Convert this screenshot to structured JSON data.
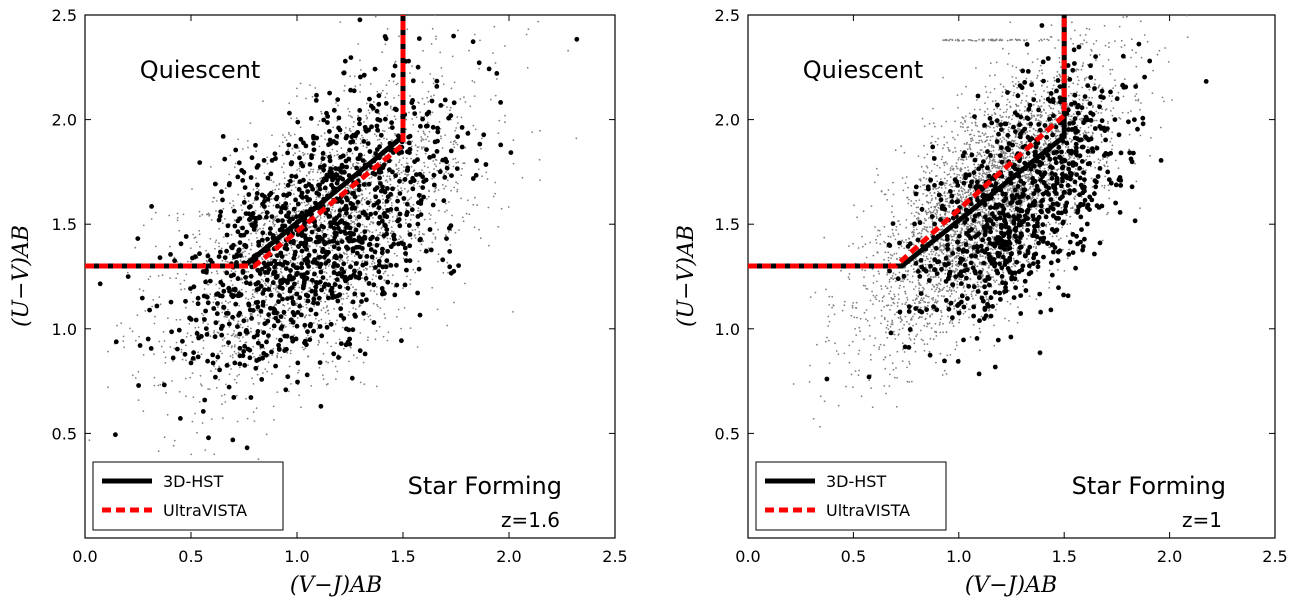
{
  "chart_data": [
    {
      "type": "scatter",
      "xlabel": "(V−J)AB",
      "ylabel": "(U−V)AB",
      "xlim": [
        0.0,
        2.5
      ],
      "ylim": [
        0.0,
        2.5
      ],
      "xticks": [
        "0.0",
        "0.5",
        "1.0",
        "1.5",
        "2.0",
        "2.5"
      ],
      "yticks": [
        "0.5",
        "1.0",
        "1.5",
        "2.0",
        "2.5"
      ],
      "region_labels": {
        "quiescent": "Quiescent",
        "star_forming": "Star Forming"
      },
      "redshift_label": "z=1.6",
      "legend": {
        "placement": "lower-left",
        "entries": [
          "3D-HST",
          "UltraVISTA"
        ]
      },
      "lines": [
        {
          "name": "3D-HST",
          "color": "#000000",
          "style": "solid",
          "x": [
            0.0,
            0.75,
            1.5,
            1.5
          ],
          "y": [
            1.3,
            1.3,
            1.92,
            2.5
          ]
        },
        {
          "name": "UltraVISTA",
          "color": "#ff0000",
          "style": "dashed",
          "x": [
            0.0,
            0.8,
            1.5,
            1.5
          ],
          "y": [
            1.3,
            1.3,
            1.88,
            2.5
          ]
        }
      ],
      "series": [
        {
          "kind": "background-gray",
          "color": "#808080",
          "n": 2600,
          "vj_mean": 1.12,
          "vj_sd": 0.36,
          "uv_mean": 1.45,
          "uv_sd": 0.36,
          "corr": 0.6
        },
        {
          "kind": "foreground-black",
          "color": "#000000",
          "n": 1200,
          "vj_mean": 1.1,
          "vj_sd": 0.33,
          "uv_mean": 1.45,
          "uv_sd": 0.33,
          "corr": 0.55
        }
      ]
    },
    {
      "type": "scatter",
      "xlabel": "(V−J)AB",
      "ylabel": "(U−V)AB",
      "xlim": [
        0.0,
        2.5
      ],
      "ylim": [
        0.0,
        2.5
      ],
      "xticks": [
        "0.0",
        "0.5",
        "1.0",
        "1.5",
        "2.0",
        "2.5"
      ],
      "yticks": [
        "0.5",
        "1.0",
        "1.5",
        "2.0",
        "2.5"
      ],
      "region_labels": {
        "quiescent": "Quiescent",
        "star_forming": "Star Forming"
      },
      "redshift_label": "z=1",
      "legend": {
        "placement": "lower-left",
        "entries": [
          "3D-HST",
          "UltraVISTA"
        ]
      },
      "lines": [
        {
          "name": "3D-HST",
          "color": "#000000",
          "style": "solid",
          "x": [
            0.0,
            0.73,
            1.5,
            1.5
          ],
          "y": [
            1.3,
            1.3,
            1.92,
            2.5
          ]
        },
        {
          "name": "UltraVISTA",
          "color": "#ff0000",
          "style": "dashed",
          "x": [
            0.0,
            0.7,
            1.5,
            1.5
          ],
          "y": [
            1.3,
            1.3,
            2.02,
            2.5
          ]
        }
      ],
      "series": [
        {
          "kind": "background-gray",
          "color": "#808080",
          "n": 4200,
          "vj_mean": 1.15,
          "vj_sd": 0.28,
          "uv_mean": 1.6,
          "uv_sd": 0.32,
          "corr": 0.7
        },
        {
          "kind": "background-gray-row",
          "color": "#808080",
          "n": 70,
          "vj_range": [
            0.92,
            1.48
          ],
          "uv": 2.38
        },
        {
          "kind": "foreground-black",
          "color": "#000000",
          "n": 900,
          "vj_mean": 1.3,
          "vj_sd": 0.25,
          "uv_mean": 1.6,
          "uv_sd": 0.3,
          "corr": 0.55
        }
      ]
    }
  ]
}
